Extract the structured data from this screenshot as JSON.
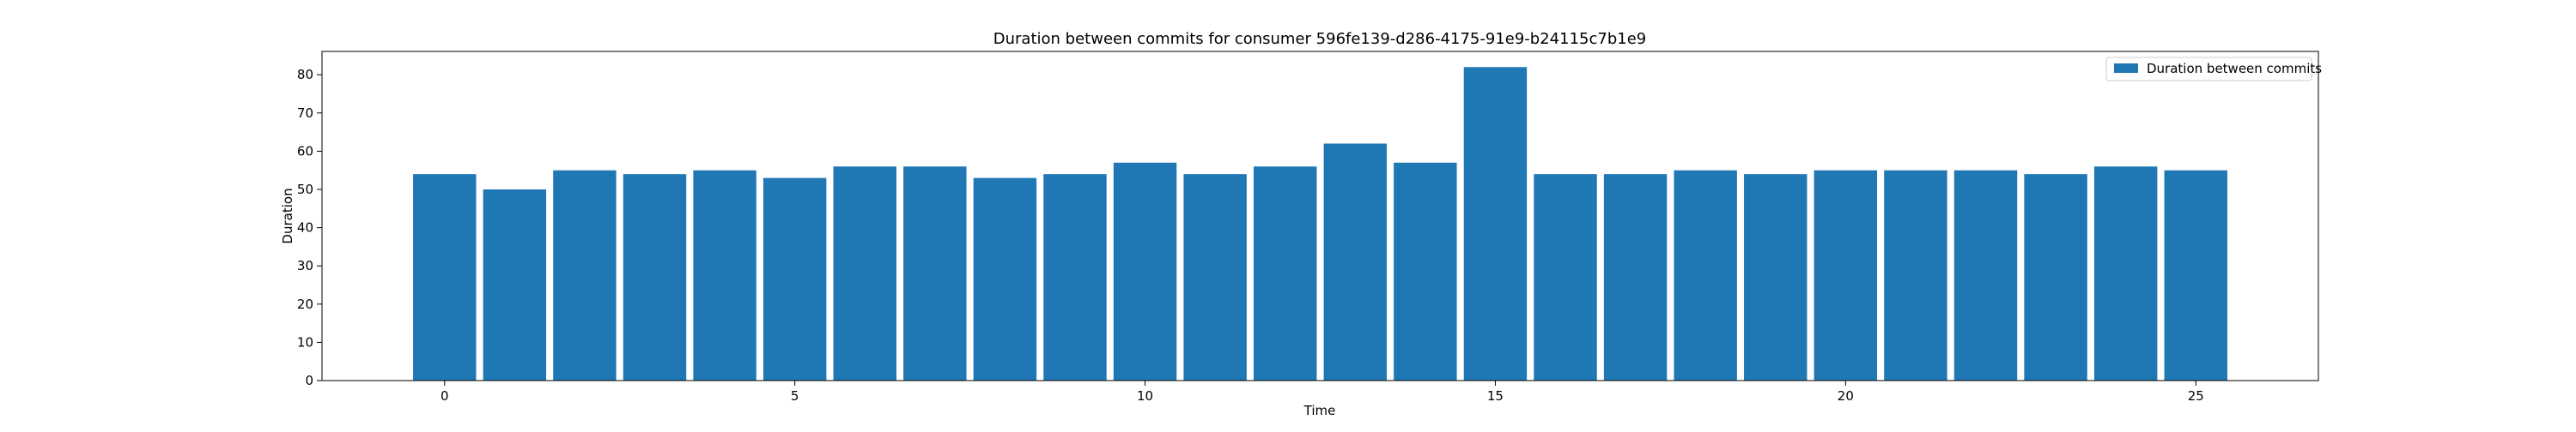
{
  "chart_data": {
    "type": "bar",
    "title": "Duration between commits for consumer 596fe139-d286-4175-91e9-b24115c7b1e9",
    "xlabel": "Time",
    "ylabel": "Duration",
    "x": [
      0,
      1,
      2,
      3,
      4,
      5,
      6,
      7,
      8,
      9,
      10,
      11,
      12,
      13,
      14,
      15,
      16,
      17,
      18,
      19,
      20,
      21,
      22,
      23,
      24,
      25
    ],
    "series": [
      {
        "name": "Duration between commits",
        "values": [
          54,
          50,
          55,
          54,
          55,
          53,
          56,
          56,
          53,
          54,
          57,
          54,
          56,
          62,
          57,
          82,
          54,
          54,
          55,
          54,
          55,
          55,
          55,
          54,
          56,
          55
        ],
        "color": "#1f77b4"
      }
    ],
    "xlim": [
      -1.75,
      26.75
    ],
    "ylim": [
      0,
      86.1
    ],
    "xticks": [
      0,
      5,
      10,
      15,
      20,
      25
    ],
    "xtick_labels": [
      "0",
      "5",
      "10",
      "15",
      "20",
      "25"
    ],
    "yticks": [
      0,
      10,
      20,
      30,
      40,
      50,
      60,
      70,
      80
    ],
    "ytick_labels": [
      "0",
      "10",
      "20",
      "30",
      "40",
      "50",
      "60",
      "70",
      "80"
    ],
    "bar_width": 0.9,
    "grid": false,
    "legend_position": "top-right"
  }
}
